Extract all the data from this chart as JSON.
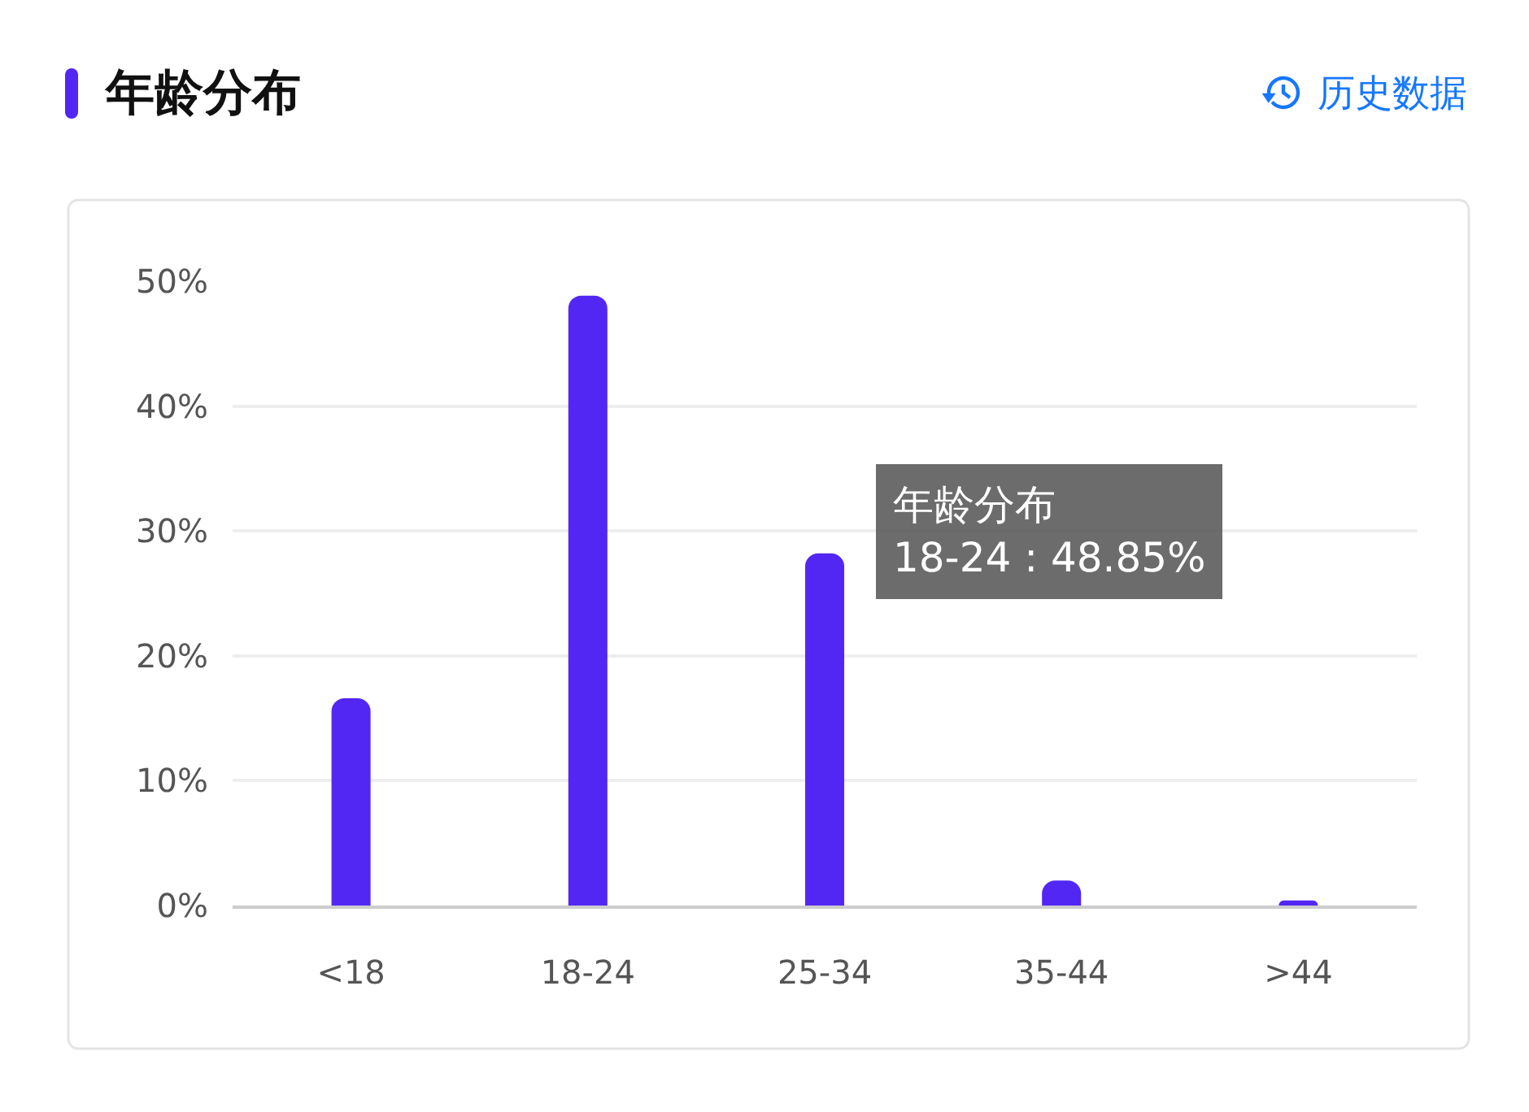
{
  "chart_data": {
    "type": "bar",
    "title": "年龄分布",
    "categories": [
      "<18",
      "18-24",
      "25-34",
      "35-44",
      ">44"
    ],
    "series": [
      {
        "color": "#5227f3",
        "values": [
          16.6,
          48.85,
          28.2,
          2.0,
          0.4
        ]
      }
    ],
    "ylim": [
      0,
      50
    ],
    "yticks": [
      {
        "value": 0,
        "label": "0%"
      },
      {
        "value": 10,
        "label": "10%"
      },
      {
        "value": 20,
        "label": "20%"
      },
      {
        "value": 30,
        "label": "30%"
      },
      {
        "value": 40,
        "label": "40%"
      },
      {
        "value": 50,
        "label": "50%"
      }
    ],
    "grid": "y",
    "annotations": [
      "历史数据",
      "年龄分布\n18-24 : 48.85%"
    ]
  }
}
